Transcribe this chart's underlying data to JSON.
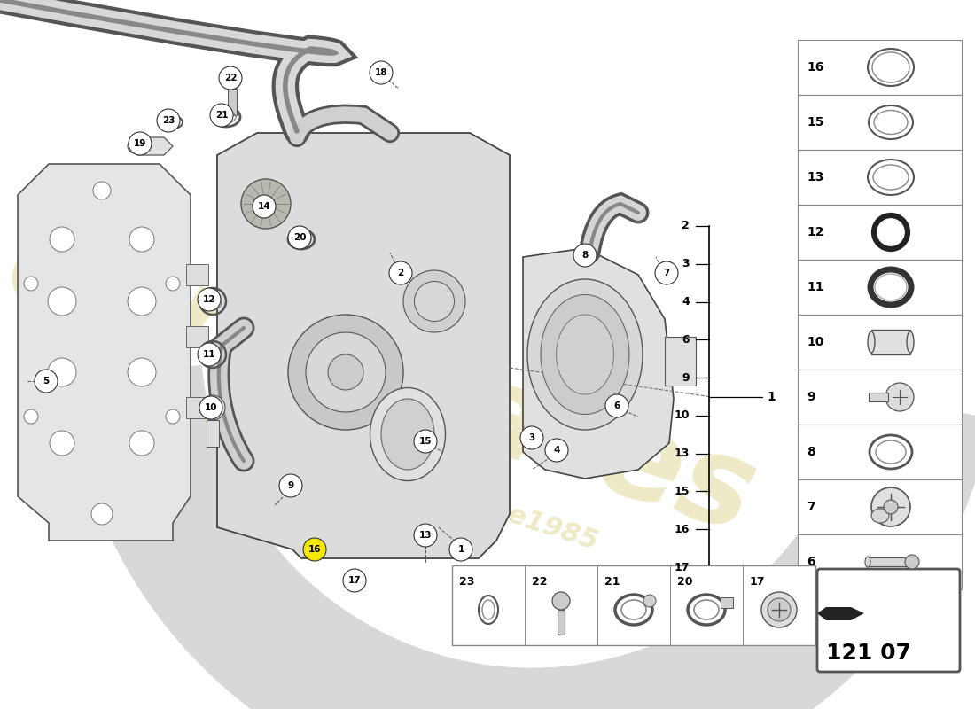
{
  "bg_color": "#ffffff",
  "part_number": "121 07",
  "right_panel_items": [
    16,
    15,
    13,
    12,
    11,
    10,
    9,
    8,
    7,
    6
  ],
  "bracket_items": [
    {
      "num": 2,
      "label": "2"
    },
    {
      "num": 3,
      "label": "3"
    },
    {
      "num": 4,
      "label": "4"
    },
    {
      "num": 6,
      "label": "6"
    },
    {
      "num": 9,
      "label": "9"
    },
    {
      "num": 10,
      "label": "10"
    },
    {
      "num": 13,
      "label": "13"
    },
    {
      "num": 15,
      "label": "15"
    },
    {
      "num": 16,
      "label": "16"
    },
    {
      "num": 17,
      "label": "17"
    }
  ],
  "bottom_row_items": [
    23,
    22,
    21,
    20,
    17
  ],
  "watermark_color": "#c8b840",
  "watermark_alpha": 0.3
}
